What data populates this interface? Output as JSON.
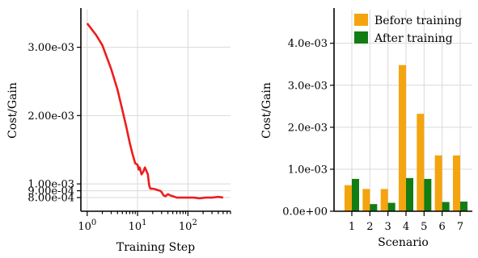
{
  "chart_data": [
    {
      "type": "line",
      "xscale": "log",
      "xlabel": "Training Step",
      "ylabel": "Cost/Gain",
      "xlim": [
        0.75,
        700
      ],
      "ylim": [
        0.0006,
        0.00355
      ],
      "x_ticks": [
        {
          "value": 1,
          "base": "10",
          "exp": "0"
        },
        {
          "value": 10,
          "base": "10",
          "exp": "1"
        },
        {
          "value": 100,
          "base": "10",
          "exp": "2"
        }
      ],
      "y_ticks": [
        {
          "value": 0.003,
          "label": "3.00e-03"
        },
        {
          "value": 0.002,
          "label": "2.00e-03"
        },
        {
          "value": 0.001,
          "label": "1.00e-03"
        },
        {
          "value": 0.0009,
          "label": "9.00e-04"
        },
        {
          "value": 0.0008,
          "label": "8.00e-04"
        }
      ],
      "grid": true,
      "series": [
        {
          "color": "#ee1c1c",
          "points": [
            [
              1,
              0.00335
            ],
            [
              1.5,
              0.00318
            ],
            [
              2,
              0.00303
            ],
            [
              3,
              0.00268
            ],
            [
              4,
              0.00238
            ],
            [
              5,
              0.00208
            ],
            [
              6,
              0.00183
            ],
            [
              7,
              0.0016
            ],
            [
              8,
              0.00143
            ],
            [
              9,
              0.0013
            ],
            [
              10,
              0.00128
            ],
            [
              10.5,
              0.00121
            ],
            [
              11,
              0.00124
            ],
            [
              12,
              0.00114
            ],
            [
              13,
              0.00118
            ],
            [
              14,
              0.00124
            ],
            [
              15,
              0.00119
            ],
            [
              16,
              0.00114
            ],
            [
              17,
              0.00098
            ],
            [
              18,
              0.00093
            ],
            [
              20,
              0.00093
            ],
            [
              23,
              0.00092
            ],
            [
              25,
              0.00091
            ],
            [
              28,
              0.0009
            ],
            [
              30,
              0.00088
            ],
            [
              33,
              0.00083
            ],
            [
              36,
              0.00082
            ],
            [
              40,
              0.00085
            ],
            [
              45,
              0.00083
            ],
            [
              50,
              0.00082
            ],
            [
              55,
              0.00081
            ],
            [
              60,
              0.0008
            ],
            [
              70,
              0.0008
            ],
            [
              85,
              0.0008
            ],
            [
              100,
              0.0008
            ],
            [
              130,
              0.0008
            ],
            [
              170,
              0.00079
            ],
            [
              220,
              0.0008
            ],
            [
              300,
              0.0008
            ],
            [
              400,
              0.00081
            ],
            [
              500,
              0.0008
            ]
          ]
        }
      ]
    },
    {
      "type": "bar",
      "xlabel": "Scenario",
      "ylabel": "Cost/Gain",
      "categories": [
        "1",
        "2",
        "3",
        "4",
        "5",
        "6",
        "7"
      ],
      "ylim": [
        0,
        0.0048
      ],
      "y_ticks": [
        {
          "value": 0,
          "label": "0.0e+00"
        },
        {
          "value": 0.001,
          "label": "1.0e-03"
        },
        {
          "value": 0.002,
          "label": "2.0e-03"
        },
        {
          "value": 0.003,
          "label": "3.0e-03"
        },
        {
          "value": 0.004,
          "label": "4.0e-03"
        }
      ],
      "grid": true,
      "legend_position": "top-right",
      "series": [
        {
          "name": "Before training",
          "color": "#f4a40e",
          "values": [
            0.00062,
            0.00053,
            0.00053,
            0.00348,
            0.00232,
            0.00133,
            0.00133
          ]
        },
        {
          "name": "After training",
          "color": "#137c13",
          "values": [
            0.00077,
            0.00017,
            0.0002,
            0.00079,
            0.00077,
            0.00022,
            0.00023
          ]
        }
      ]
    }
  ]
}
